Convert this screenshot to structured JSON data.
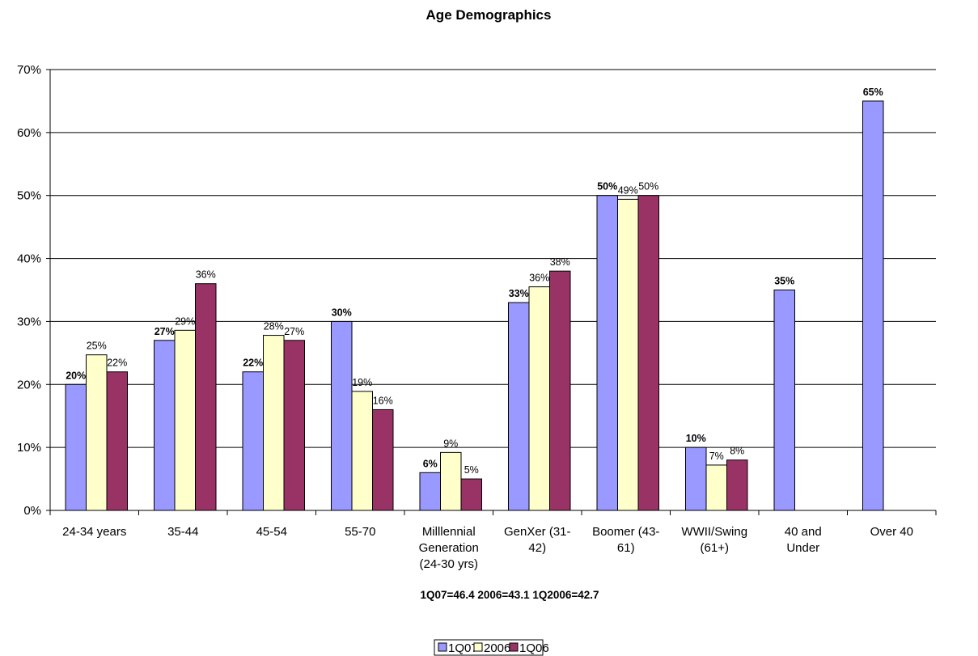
{
  "chart_data": {
    "type": "bar",
    "title": "Age Demographics",
    "xlabel": "1Q07=46.4  2006=43.1  1Q2006=42.7",
    "ylabel": "",
    "ylim": [
      0,
      70
    ],
    "yticks": [
      "0%",
      "10%",
      "20%",
      "30%",
      "40%",
      "50%",
      "60%",
      "70%"
    ],
    "grid": true,
    "legend_position": "bottom",
    "categories": [
      [
        "24-34 years"
      ],
      [
        "35-44"
      ],
      [
        "45-54"
      ],
      [
        "55-70"
      ],
      [
        "Milllennial",
        "Generation",
        "(24-30 yrs)"
      ],
      [
        "GenXer (31-",
        "42)"
      ],
      [
        "Boomer (43-",
        "61)"
      ],
      [
        "WWII/Swing",
        "(61+)"
      ],
      [
        "40 and",
        "Under"
      ],
      [
        "Over 40"
      ]
    ],
    "series": [
      {
        "name": "1Q07",
        "color": "#9999ff",
        "bold_labels": true,
        "values": [
          20,
          27,
          22,
          30,
          6,
          33,
          50,
          10,
          35,
          65
        ],
        "labels": [
          "20%",
          "27%",
          "22%",
          "30%",
          "6%",
          "33%",
          "50%",
          "10%",
          "35%",
          "65%"
        ]
      },
      {
        "name": "2006",
        "color": "#ffffcc",
        "bold_labels": false,
        "values": [
          24.7,
          28.6,
          27.8,
          18.9,
          9.2,
          35.5,
          49.4,
          7.2,
          null,
          null
        ],
        "labels": [
          "25%",
          "29%",
          "28%",
          "19%",
          "9%",
          "36%",
          "49%",
          "7%",
          null,
          null
        ]
      },
      {
        "name": "1Q06",
        "color": "#993366",
        "bold_labels": false,
        "values": [
          22,
          36,
          27,
          16,
          5,
          38,
          50,
          8,
          null,
          null
        ],
        "labels": [
          "22%",
          "36%",
          "27%",
          "16%",
          "5%",
          "38%",
          "50%",
          "8%",
          null,
          null
        ]
      }
    ]
  }
}
